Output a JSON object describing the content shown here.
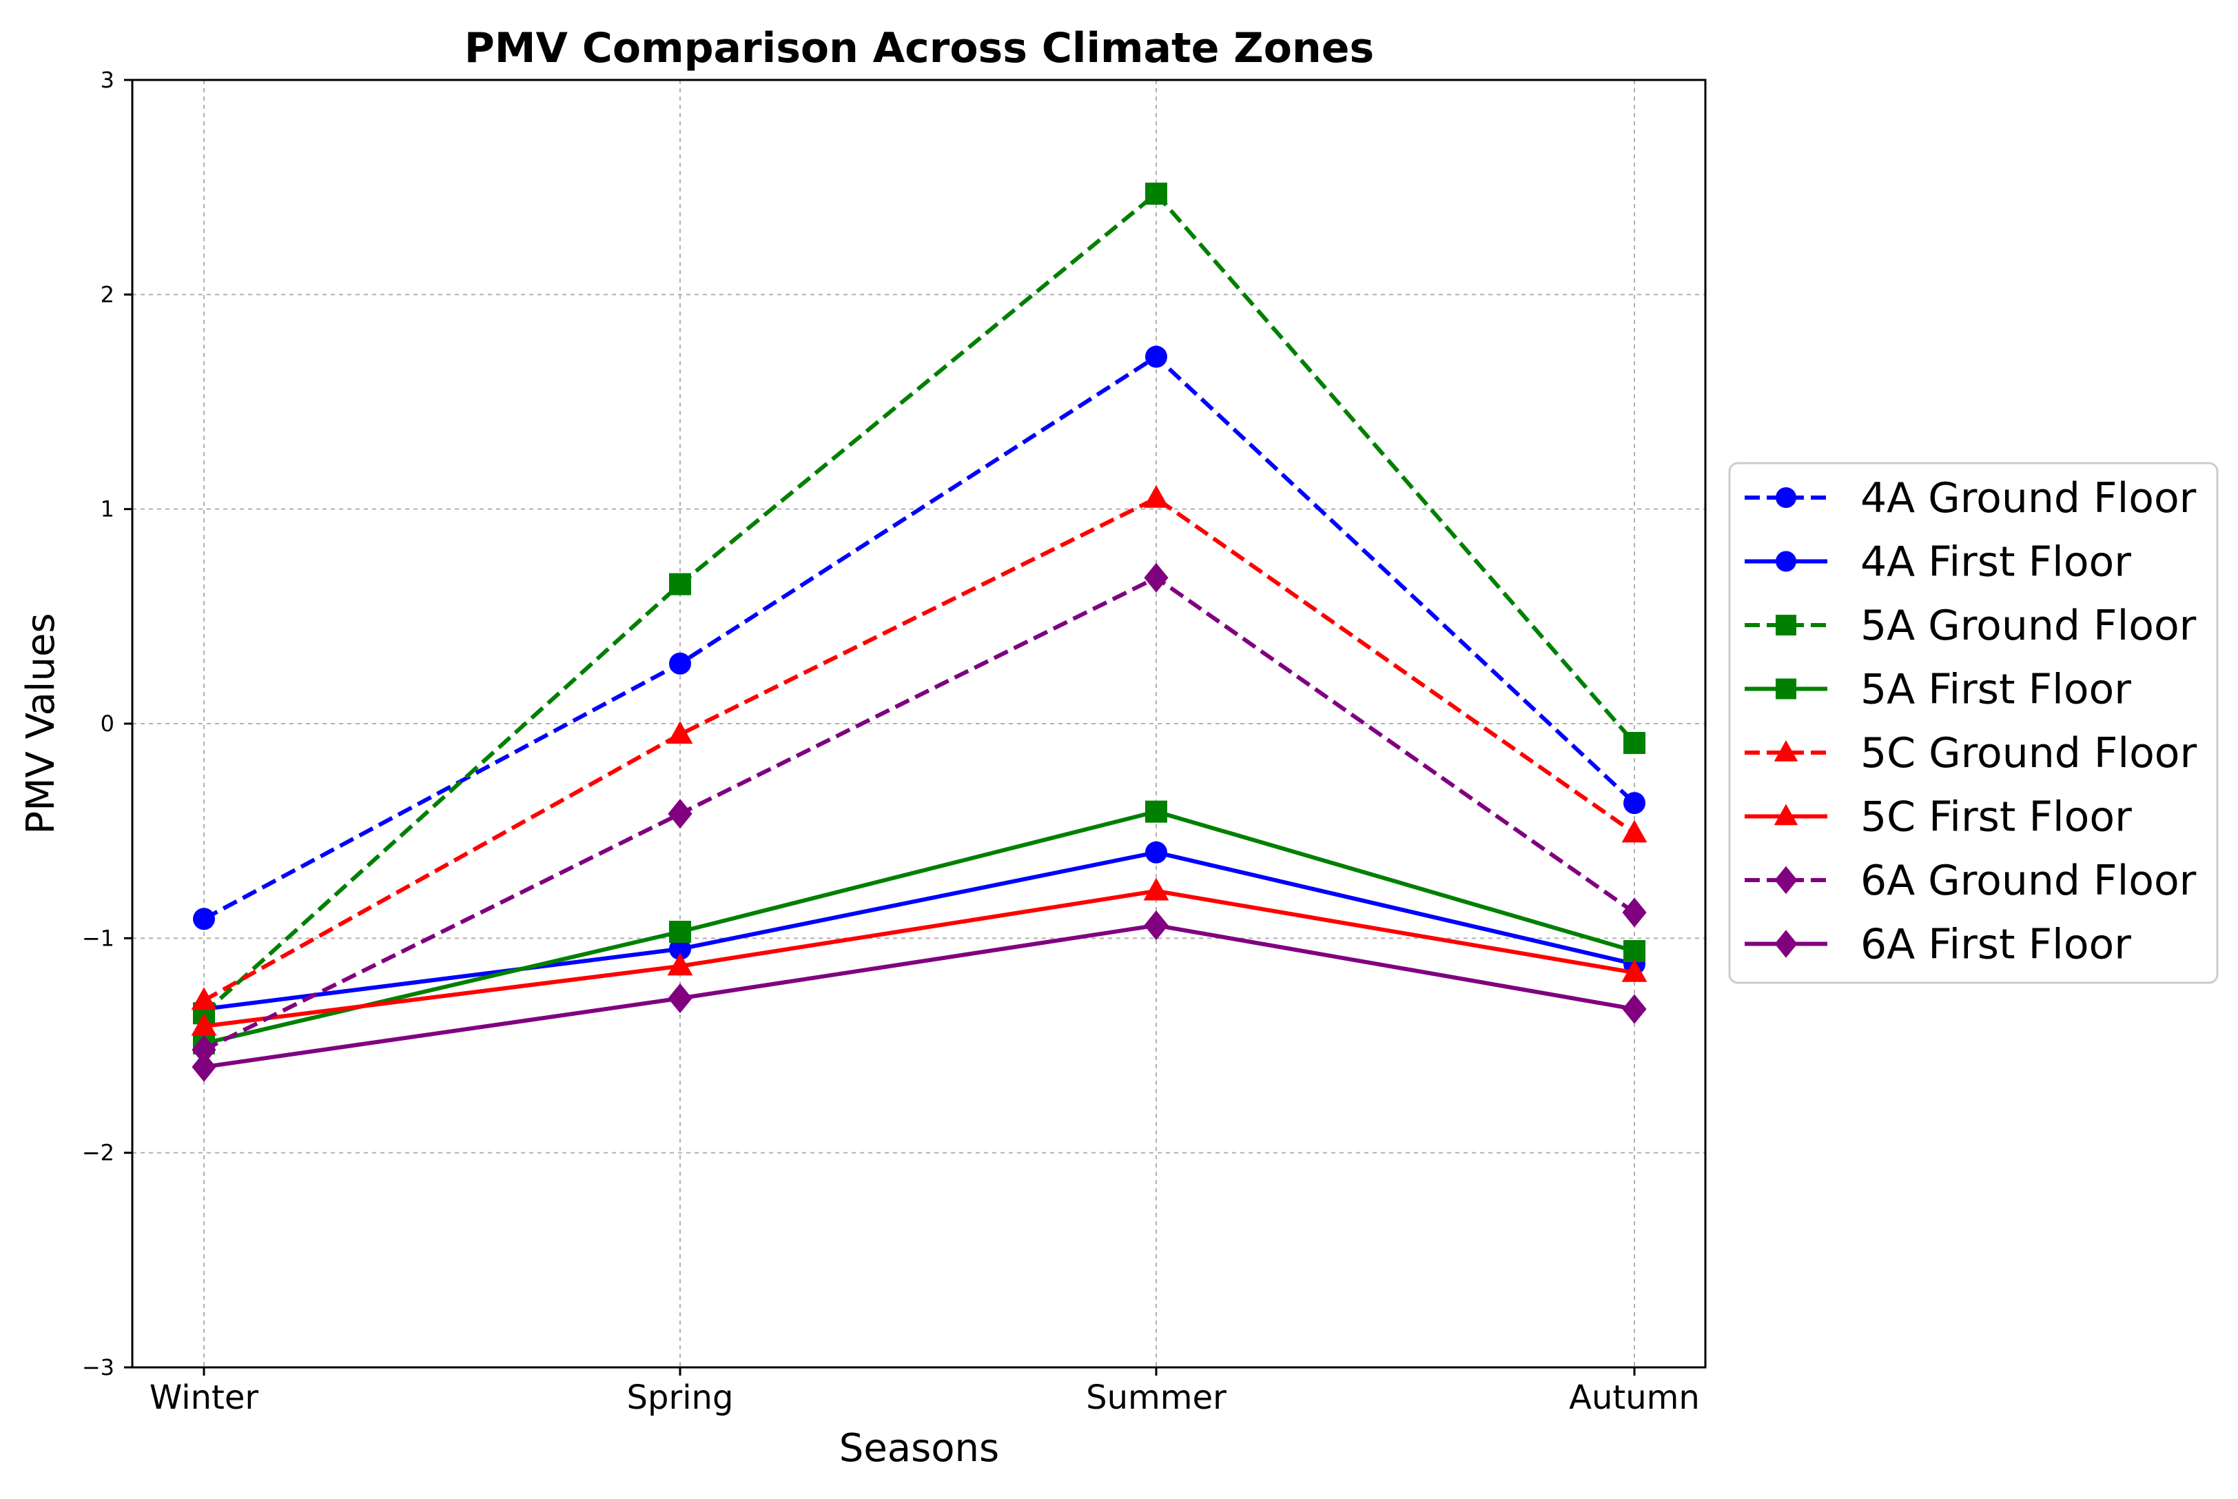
{
  "chart_data": {
    "type": "line",
    "title": "PMV Comparison Across Climate Zones",
    "xlabel": "Seasons",
    "ylabel": "PMV Values",
    "categories": [
      "Winter",
      "Spring",
      "Summer",
      "Autumn"
    ],
    "ylim": [
      -3,
      3
    ],
    "yticks": [
      -3,
      -2,
      -1,
      0,
      1,
      2,
      3
    ],
    "ytick_labels": [
      "−3",
      "−2",
      "−1",
      "0",
      "1",
      "2",
      "3"
    ],
    "grid": true,
    "legend_position": "right",
    "series": [
      {
        "name": "4A Ground Floor",
        "color": "#0000ff",
        "dashed": true,
        "marker": "circle",
        "values": [
          -0.91,
          0.28,
          1.71,
          -0.37
        ]
      },
      {
        "name": "4A First Floor",
        "color": "#0000ff",
        "dashed": false,
        "marker": "circle",
        "values": [
          -1.33,
          -1.05,
          -0.6,
          -1.12
        ]
      },
      {
        "name": "5A Ground Floor",
        "color": "#008000",
        "dashed": true,
        "marker": "square",
        "values": [
          -1.35,
          0.65,
          2.47,
          -0.09
        ]
      },
      {
        "name": "5A First Floor",
        "color": "#008000",
        "dashed": false,
        "marker": "square",
        "values": [
          -1.49,
          -0.97,
          -0.41,
          -1.06
        ]
      },
      {
        "name": "5C Ground Floor",
        "color": "#ff0000",
        "dashed": true,
        "marker": "triangle",
        "values": [
          -1.29,
          -0.05,
          1.05,
          -0.51
        ]
      },
      {
        "name": "5C First Floor",
        "color": "#ff0000",
        "dashed": false,
        "marker": "triangle",
        "values": [
          -1.41,
          -1.13,
          -0.78,
          -1.16
        ]
      },
      {
        "name": "6A Ground Floor",
        "color": "#800080",
        "dashed": true,
        "marker": "diamond",
        "values": [
          -1.52,
          -0.42,
          0.68,
          -0.88
        ]
      },
      {
        "name": "6A First Floor",
        "color": "#800080",
        "dashed": false,
        "marker": "diamond",
        "values": [
          -1.6,
          -1.28,
          -0.94,
          -1.33
        ]
      }
    ]
  }
}
